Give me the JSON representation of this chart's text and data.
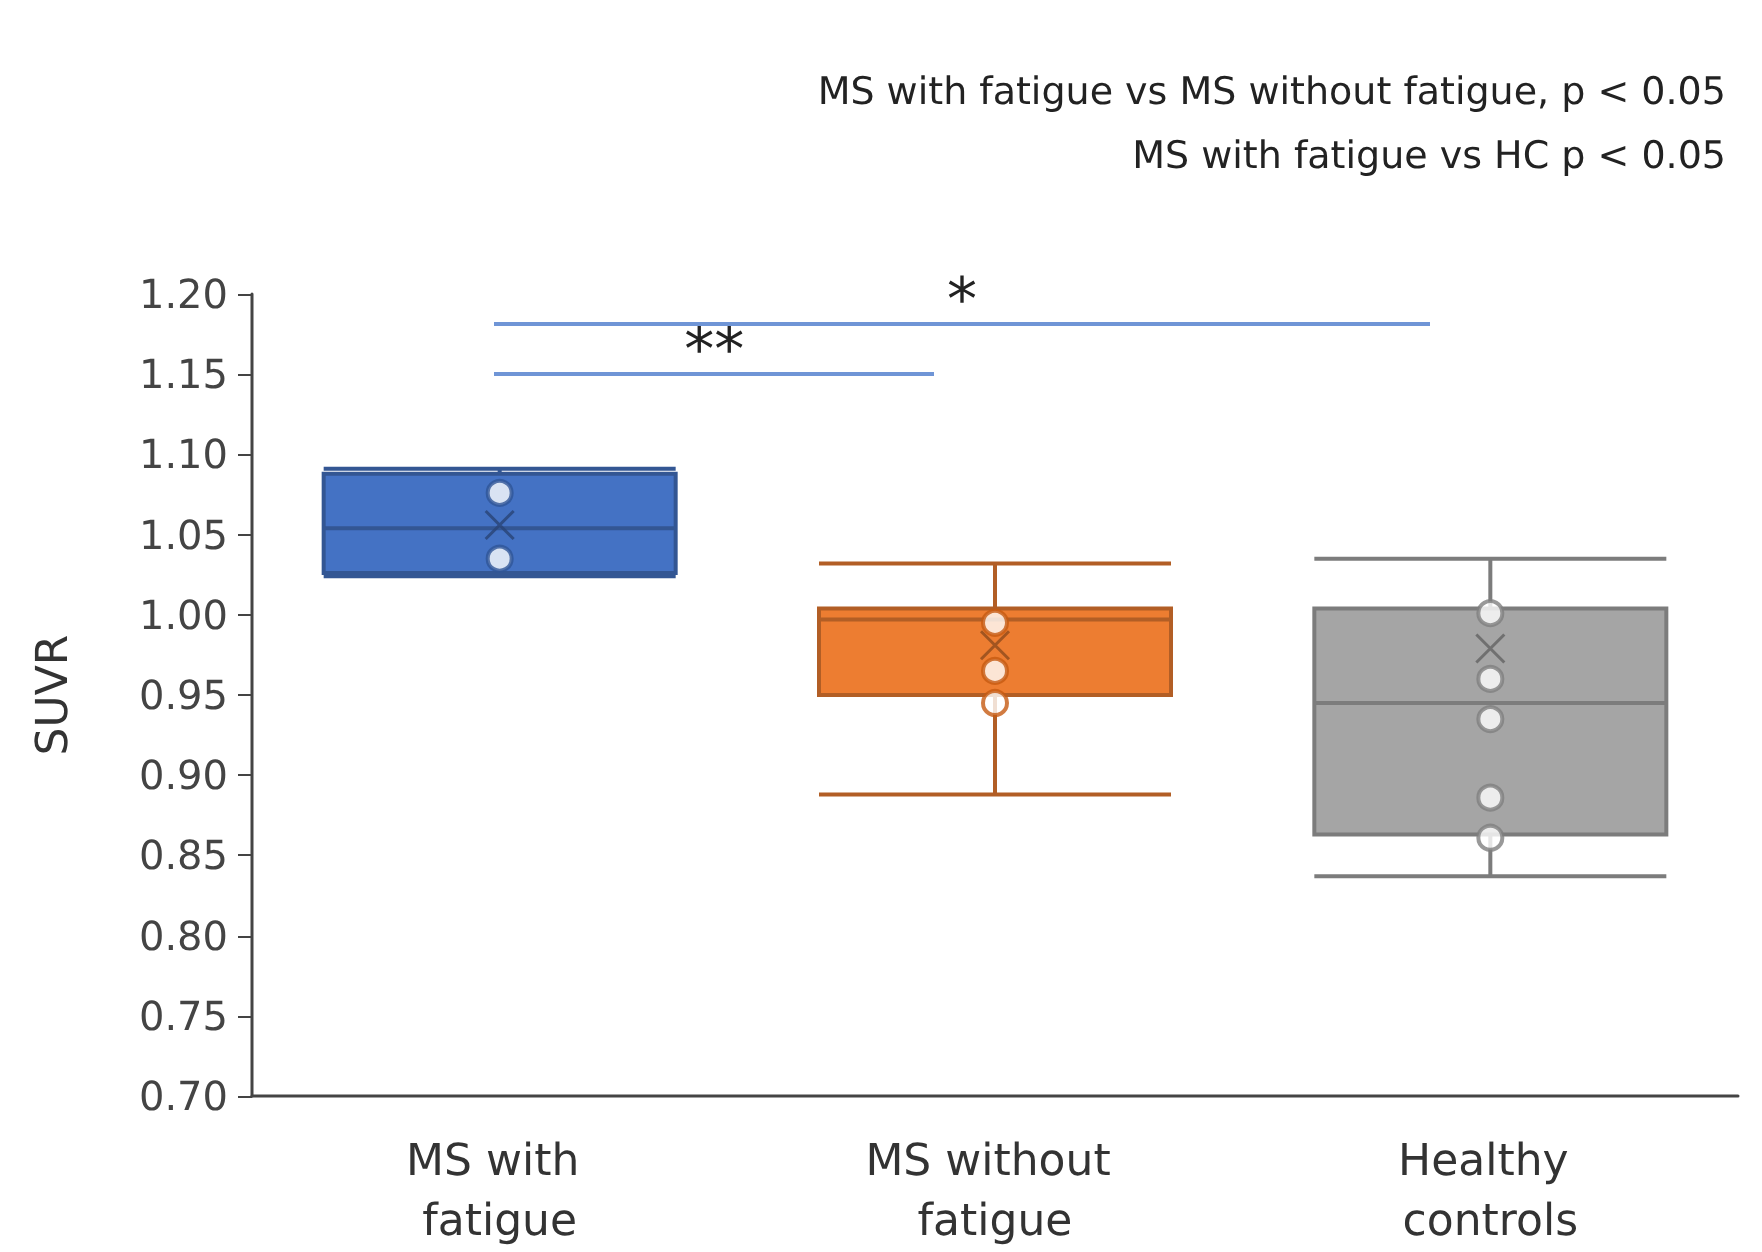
{
  "chart_data": {
    "type": "box",
    "ylabel": "SUVR",
    "categories": [
      "MS with fatigue",
      "MS without fatigue",
      "Healthy controls"
    ],
    "boxes": [
      {
        "low": 1.024,
        "q1": 1.026,
        "median": 1.054,
        "q3": 1.088,
        "high": 1.091,
        "mean": 1.056
      },
      {
        "low": 0.888,
        "q1": 0.95,
        "median": 0.997,
        "q3": 1.004,
        "high": 1.032,
        "mean": 0.981
      },
      {
        "low": 0.837,
        "q1": 0.863,
        "median": 0.945,
        "q3": 1.004,
        "high": 1.035,
        "mean": 0.979
      }
    ],
    "colors": [
      "#4472c4",
      "#ed7d31",
      "#a5a5a5"
    ],
    "series": [
      {
        "type": "scatter",
        "color": "#2f5597",
        "x": [
          "MS with fatigue",
          "MS with fatigue"
        ],
        "values": [
          1.076,
          1.035
        ]
      },
      {
        "type": "scatter",
        "color": "#c55a11",
        "x": [
          "MS without fatigue",
          "MS without fatigue",
          "MS without fatigue"
        ],
        "values": [
          0.995,
          0.965,
          0.945
        ]
      },
      {
        "type": "scatter",
        "color": "#7f7f7f",
        "x": [
          "Healthy controls",
          "Healthy controls",
          "Healthy controls",
          "Healthy controls",
          "Healthy controls"
        ],
        "values": [
          1.001,
          0.96,
          0.935,
          0.886,
          0.861
        ]
      }
    ],
    "marker": "circle",
    "ylim": [
      0.7,
      1.2
    ],
    "yticks": [
      {
        "value": 0.7,
        "label": "0.70"
      },
      {
        "value": 0.75,
        "label": "0.75"
      },
      {
        "value": 0.8,
        "label": "0.80"
      },
      {
        "value": 0.85,
        "label": "0.85"
      },
      {
        "value": 0.9,
        "label": "0.90"
      },
      {
        "value": 0.95,
        "label": "0.95"
      },
      {
        "value": 1.0,
        "label": "1.00"
      },
      {
        "value": 1.05,
        "label": "1.05"
      },
      {
        "value": 1.1,
        "label": "1.10"
      },
      {
        "value": 1.15,
        "label": "1.15"
      },
      {
        "value": 1.2,
        "label": "1.20"
      }
    ],
    "grid": false,
    "annotations": [
      "MS with fatigue vs MS without fatigue, p < 0.05",
      "MS with fatigue vs HC p < 0.05",
      "**",
      "*"
    ]
  }
}
